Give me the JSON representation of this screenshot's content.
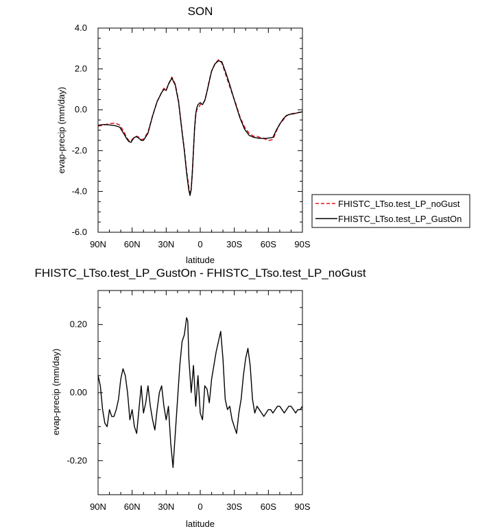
{
  "chart_data": [
    {
      "type": "line",
      "title": "SON",
      "xlabel": "latitude",
      "ylabel": "evap-precip (mm/day)",
      "xlim": [
        90,
        -90
      ],
      "ylim": [
        -6,
        4
      ],
      "xtick_values": [
        90,
        60,
        30,
        0,
        -30,
        -60,
        -90
      ],
      "xtick_labels": [
        "90N",
        "60N",
        "30N",
        "0",
        "30S",
        "60S",
        "90S"
      ],
      "ytick_values": [
        4,
        2,
        0,
        -2,
        -4,
        -6
      ],
      "ytick_labels": [
        "4.0",
        "2.0",
        "0.0",
        "-2.0",
        "-4.0",
        "-6.0"
      ],
      "legend_position": "right",
      "series": [
        {
          "name": "FHISTC_LTso.test_LP_noGust",
          "color": "#e0141c",
          "dash": "dashed",
          "x": [
            90,
            85,
            80,
            75,
            71,
            67,
            65,
            63,
            61,
            60,
            58,
            56,
            54,
            52,
            50,
            46,
            42,
            38,
            34,
            32,
            30,
            28,
            25,
            22,
            19,
            16,
            14,
            12,
            10,
            9,
            8,
            7,
            6,
            5,
            4,
            3,
            2,
            1,
            0,
            -1,
            -2,
            -4,
            -6,
            -8,
            -10,
            -13,
            -16,
            -19,
            -22,
            -25,
            -28,
            -31,
            -35,
            -39,
            -43,
            -47,
            -50,
            -52,
            -55,
            -58,
            -61,
            -64,
            -67,
            -70,
            -73,
            -76,
            -79,
            -82,
            -85,
            -88,
            -90
          ],
          "y": [
            -0.8,
            -0.75,
            -0.68,
            -0.65,
            -0.75,
            -1.1,
            -1.35,
            -1.5,
            -1.55,
            -1.45,
            -1.35,
            -1.3,
            -1.35,
            -1.45,
            -1.45,
            -1.1,
            -0.3,
            0.4,
            0.85,
            1.05,
            0.95,
            1.25,
            1.6,
            1.25,
            0.4,
            -1.05,
            -1.95,
            -3.0,
            -3.8,
            -4.15,
            -3.9,
            -3.1,
            -2.0,
            -1.0,
            -0.3,
            0.0,
            0.1,
            0.15,
            0.25,
            0.3,
            0.3,
            0.45,
            0.9,
            1.45,
            1.9,
            2.25,
            2.45,
            2.3,
            1.8,
            1.3,
            0.8,
            0.35,
            -0.35,
            -0.85,
            -1.15,
            -1.3,
            -1.3,
            -1.35,
            -1.4,
            -1.45,
            -1.5,
            -1.45,
            -1.05,
            -0.7,
            -0.5,
            -0.3,
            -0.2,
            -0.18,
            -0.15,
            -0.12,
            -0.1
          ]
        },
        {
          "name": "FHISTC_LTso.test_LP_GustOn",
          "color": "#000000",
          "dash": "solid",
          "x": [
            90,
            85,
            80,
            75,
            71,
            67,
            65,
            63,
            61,
            60,
            58,
            56,
            54,
            52,
            50,
            46,
            42,
            38,
            34,
            32,
            30,
            28,
            25,
            22,
            19,
            16,
            14,
            12,
            10,
            9,
            8,
            7,
            6,
            5,
            4,
            3,
            2,
            1,
            0,
            -1,
            -2,
            -4,
            -6,
            -8,
            -10,
            -13,
            -16,
            -19,
            -22,
            -25,
            -28,
            -31,
            -35,
            -39,
            -43,
            -47,
            -50,
            -52,
            -55,
            -58,
            -61,
            -64,
            -67,
            -70,
            -73,
            -76,
            -79,
            -82,
            -85,
            -88,
            -90
          ],
          "y": [
            -0.76,
            -0.72,
            -0.74,
            -0.78,
            -0.85,
            -1.2,
            -1.4,
            -1.55,
            -1.6,
            -1.5,
            -1.35,
            -1.32,
            -1.4,
            -1.5,
            -1.5,
            -1.15,
            -0.3,
            0.4,
            0.85,
            1.0,
            0.95,
            1.25,
            1.55,
            1.2,
            0.35,
            -1.1,
            -2.0,
            -3.1,
            -3.95,
            -4.2,
            -3.9,
            -3.1,
            -2.0,
            -0.9,
            -0.2,
            0.1,
            0.25,
            0.3,
            0.35,
            0.3,
            0.25,
            0.45,
            0.9,
            1.4,
            1.9,
            2.25,
            2.4,
            2.35,
            1.9,
            1.4,
            0.85,
            0.3,
            -0.4,
            -0.95,
            -1.25,
            -1.35,
            -1.38,
            -1.4,
            -1.4,
            -1.4,
            -1.38,
            -1.35,
            -1.0,
            -0.7,
            -0.45,
            -0.28,
            -0.22,
            -0.2,
            -0.16,
            -0.12,
            -0.1
          ]
        }
      ]
    },
    {
      "type": "line",
      "title": "FHISTC_LTso.test_LP_GustOn - FHISTC_LTso.test_LP_noGust",
      "xlabel": "latitude",
      "ylabel": "evap-precip (mm/day)",
      "xlim": [
        90,
        -90
      ],
      "ylim": [
        -0.3,
        0.3
      ],
      "xtick_values": [
        90,
        60,
        30,
        0,
        -30,
        -60,
        -90
      ],
      "xtick_labels": [
        "90N",
        "60N",
        "30N",
        "0",
        "30S",
        "60S",
        "90S"
      ],
      "ytick_values": [
        0.2,
        0.0,
        -0.2
      ],
      "ytick_labels": [
        "0.20",
        "0.00",
        "-0.20"
      ],
      "series": [
        {
          "color": "#000000",
          "dash": "solid",
          "x": [
            90,
            88,
            86,
            84,
            82,
            80,
            78,
            76,
            74,
            72,
            70,
            68,
            66,
            64,
            62,
            60,
            58,
            56,
            54,
            52,
            50,
            48,
            46,
            44,
            42,
            40,
            38,
            36,
            34,
            32,
            30,
            28,
            26,
            24,
            22,
            20,
            18,
            16,
            14,
            12,
            11,
            10,
            8,
            6,
            4,
            2,
            0,
            -2,
            -4,
            -6,
            -8,
            -10,
            -12,
            -14,
            -16,
            -18,
            -20,
            -22,
            -24,
            -26,
            -28,
            -30,
            -32,
            -34,
            -36,
            -38,
            -40,
            -42,
            -44,
            -46,
            -48,
            -50,
            -52,
            -54,
            -56,
            -58,
            -60,
            -62,
            -64,
            -66,
            -68,
            -70,
            -72,
            -74,
            -76,
            -78,
            -80,
            -82,
            -84,
            -86,
            -88,
            -90
          ],
          "y": [
            0.05,
            0.02,
            -0.05,
            -0.09,
            -0.1,
            -0.05,
            -0.07,
            -0.07,
            -0.05,
            -0.02,
            0.04,
            0.07,
            0.05,
            0.0,
            -0.08,
            -0.05,
            -0.1,
            -0.12,
            -0.05,
            0.02,
            -0.06,
            -0.03,
            0.02,
            -0.04,
            -0.08,
            -0.11,
            -0.05,
            0.0,
            0.02,
            -0.04,
            -0.08,
            -0.04,
            -0.15,
            -0.22,
            -0.12,
            -0.02,
            0.08,
            0.15,
            0.17,
            0.22,
            0.21,
            0.1,
            0.0,
            0.08,
            -0.04,
            0.05,
            -0.06,
            -0.08,
            0.02,
            0.01,
            -0.03,
            0.04,
            0.08,
            0.12,
            0.15,
            0.18,
            0.1,
            -0.02,
            -0.05,
            -0.04,
            -0.08,
            -0.1,
            -0.12,
            -0.06,
            -0.02,
            0.05,
            0.1,
            0.13,
            0.08,
            -0.02,
            -0.06,
            -0.04,
            -0.05,
            -0.06,
            -0.07,
            -0.06,
            -0.05,
            -0.05,
            -0.06,
            -0.05,
            -0.04,
            -0.04,
            -0.05,
            -0.06,
            -0.05,
            -0.04,
            -0.04,
            -0.05,
            -0.06,
            -0.05,
            -0.05,
            -0.04
          ]
        }
      ]
    }
  ]
}
